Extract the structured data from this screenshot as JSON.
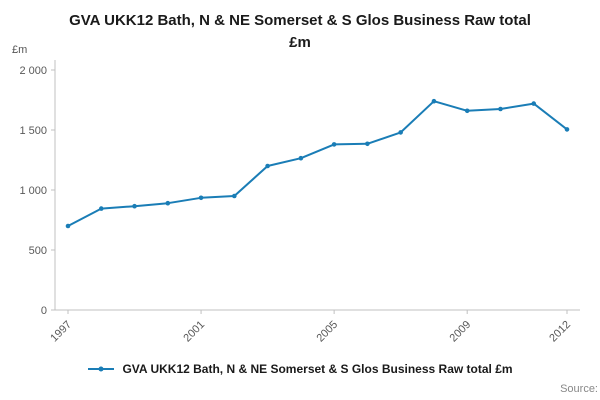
{
  "title": "GVA UKK12 Bath, N & NE Somerset & S Glos Business Raw total £m",
  "legend": {
    "label": "GVA UKK12 Bath, N & NE Somerset & S Glos Business Raw total £m"
  },
  "source": {
    "label": "Source:"
  },
  "chart_data": {
    "type": "line",
    "title": "GVA UKK12 Bath, N & NE Somerset & S Glos Business Raw total £m",
    "xlabel": "",
    "ylabel": "£m",
    "x": [
      1997,
      1998,
      1999,
      2000,
      2001,
      2002,
      2003,
      2004,
      2005,
      2006,
      2007,
      2008,
      2009,
      2010,
      2011,
      2012
    ],
    "values": [
      700,
      845,
      865,
      890,
      935,
      950,
      1200,
      1265,
      1380,
      1385,
      1480,
      1740,
      1660,
      1675,
      1720,
      1505
    ],
    "series_name": "GVA UKK12 Bath, N & NE Somerset & S Glos Business Raw total £m",
    "ylim": [
      0,
      2000
    ],
    "xticks": [
      1997,
      2001,
      2005,
      2009,
      2012
    ],
    "yticks": [
      {
        "value": 0,
        "label": "0"
      },
      {
        "value": 500,
        "label": "500"
      },
      {
        "value": 1000,
        "label": "1 000"
      },
      {
        "value": 1500,
        "label": "1 500"
      },
      {
        "value": 2000,
        "label": "2 000"
      }
    ],
    "grid": false,
    "legend_position": "bottom",
    "line_color": "#1a7db6",
    "axis_color": "#c0c0c0",
    "tick_label_color": "#595959"
  }
}
